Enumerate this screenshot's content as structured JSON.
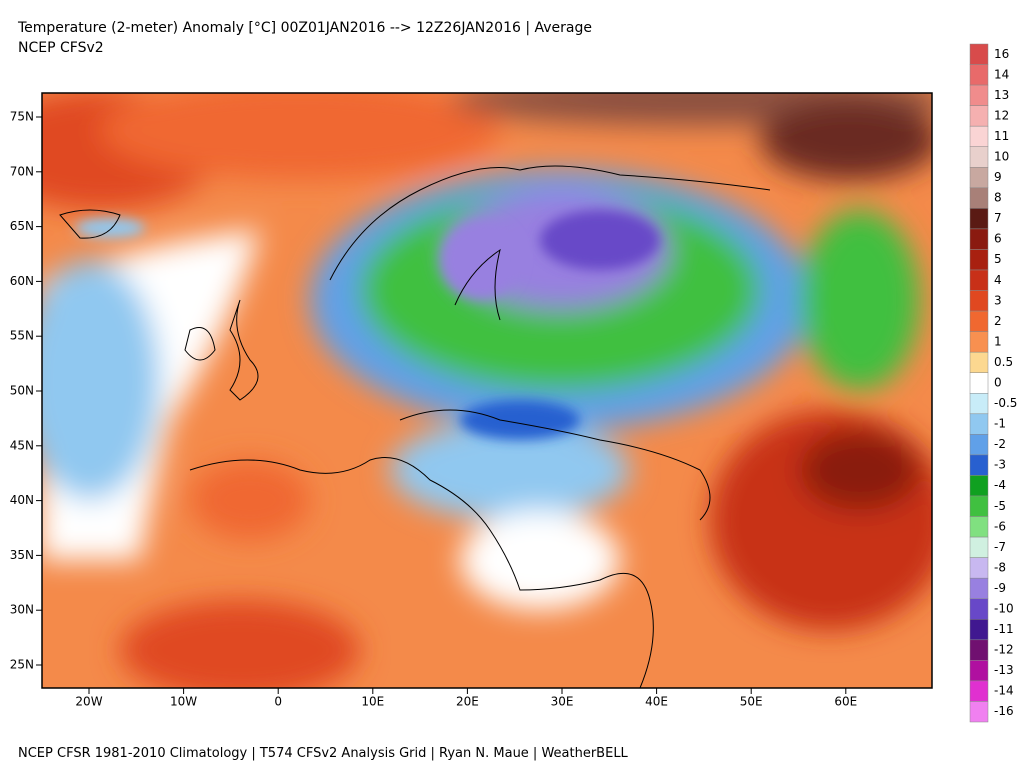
{
  "header": {
    "title": "Temperature (2-meter) Anomaly  [°C] 00Z01JAN2016 --> 12Z26JAN2016 | Average",
    "subtitle": "NCEP CFSv2"
  },
  "map": {
    "lat_labels": [
      "75N",
      "70N",
      "65N",
      "60N",
      "55N",
      "50N",
      "45N",
      "40N",
      "35N",
      "30N",
      "25N"
    ],
    "lon_labels": [
      "20W",
      "10W",
      "0",
      "10E",
      "20E",
      "30E",
      "40E",
      "50E",
      "60E"
    ]
  },
  "colorbar": {
    "items": [
      {
        "label": "16",
        "color": "#d84b4b"
      },
      {
        "label": "14",
        "color": "#e86a6a"
      },
      {
        "label": "13",
        "color": "#f08c8c"
      },
      {
        "label": "12",
        "color": "#f5b0b0"
      },
      {
        "label": "11",
        "color": "#fad4d4"
      },
      {
        "label": "10",
        "color": "#e8d0cc"
      },
      {
        "label": "9",
        "color": "#c8a8a0"
      },
      {
        "label": "8",
        "color": "#a88078"
      },
      {
        "label": "7",
        "color": "#5a1a14"
      },
      {
        "label": "6",
        "color": "#8a1a10"
      },
      {
        "label": "5",
        "color": "#a82010"
      },
      {
        "label": "4",
        "color": "#c83018"
      },
      {
        "label": "3",
        "color": "#e04820"
      },
      {
        "label": "2",
        "color": "#f06830"
      },
      {
        "label": "1",
        "color": "#f89050"
      },
      {
        "label": "0.5",
        "color": "#fcd890"
      },
      {
        "label": "0",
        "color": "#ffffff"
      },
      {
        "label": "-0.5",
        "color": "#c8ecf8"
      },
      {
        "label": "-1",
        "color": "#90c8f0"
      },
      {
        "label": "-2",
        "color": "#60a0e8"
      },
      {
        "label": "-3",
        "color": "#2860d0"
      },
      {
        "label": "-4",
        "color": "#10a020"
      },
      {
        "label": "-5",
        "color": "#40c040"
      },
      {
        "label": "-6",
        "color": "#80e080"
      },
      {
        "label": "-7",
        "color": "#d0f0e0"
      },
      {
        "label": "-8",
        "color": "#c8b8f0"
      },
      {
        "label": "-9",
        "color": "#9880e0"
      },
      {
        "label": "-10",
        "color": "#6848c8"
      },
      {
        "label": "-11",
        "color": "#401890"
      },
      {
        "label": "-12",
        "color": "#701070"
      },
      {
        "label": "-13",
        "color": "#b010a0"
      },
      {
        "label": "-14",
        "color": "#e030d0"
      },
      {
        "label": "-16",
        "color": "#f080f0"
      }
    ]
  },
  "footer": "NCEP CFSR 1981-2010 Climatology | T574 CFSv2 Analysis Grid | Ryan N. Maue | WeatherBELL"
}
